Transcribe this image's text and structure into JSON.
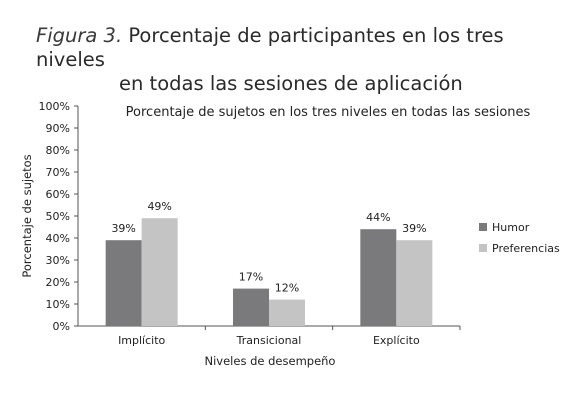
{
  "figure": {
    "label": "Figura 3.",
    "title_line1": "Porcentaje de participantes en los tres niveles",
    "title_line2": "en todas las sesiones de aplicación"
  },
  "chart_data": {
    "type": "bar",
    "title": "Porcentaje de sujetos en los tres niveles en todas las sesiones",
    "xlabel": "Niveles de desempeño",
    "ylabel": "Porcentaje de sujetos",
    "categories": [
      "Implícito",
      "Transicional",
      "Explícito"
    ],
    "series": [
      {
        "name": "Humor",
        "values": [
          39,
          17,
          44
        ],
        "labels": [
          "39%",
          "17%",
          "44%"
        ],
        "color": "#7a7a7c"
      },
      {
        "name": "Preferencias",
        "values": [
          49,
          12,
          39
        ],
        "labels": [
          "49%",
          "12%",
          "39%"
        ],
        "color": "#c4c4c4"
      }
    ],
    "ylim": [
      0,
      100
    ],
    "yticks": [
      "0%",
      "10%",
      "20%",
      "30%",
      "40%",
      "50%",
      "60%",
      "70%",
      "80%",
      "90%",
      "100%"
    ],
    "grid": false,
    "legend_position": "right"
  }
}
